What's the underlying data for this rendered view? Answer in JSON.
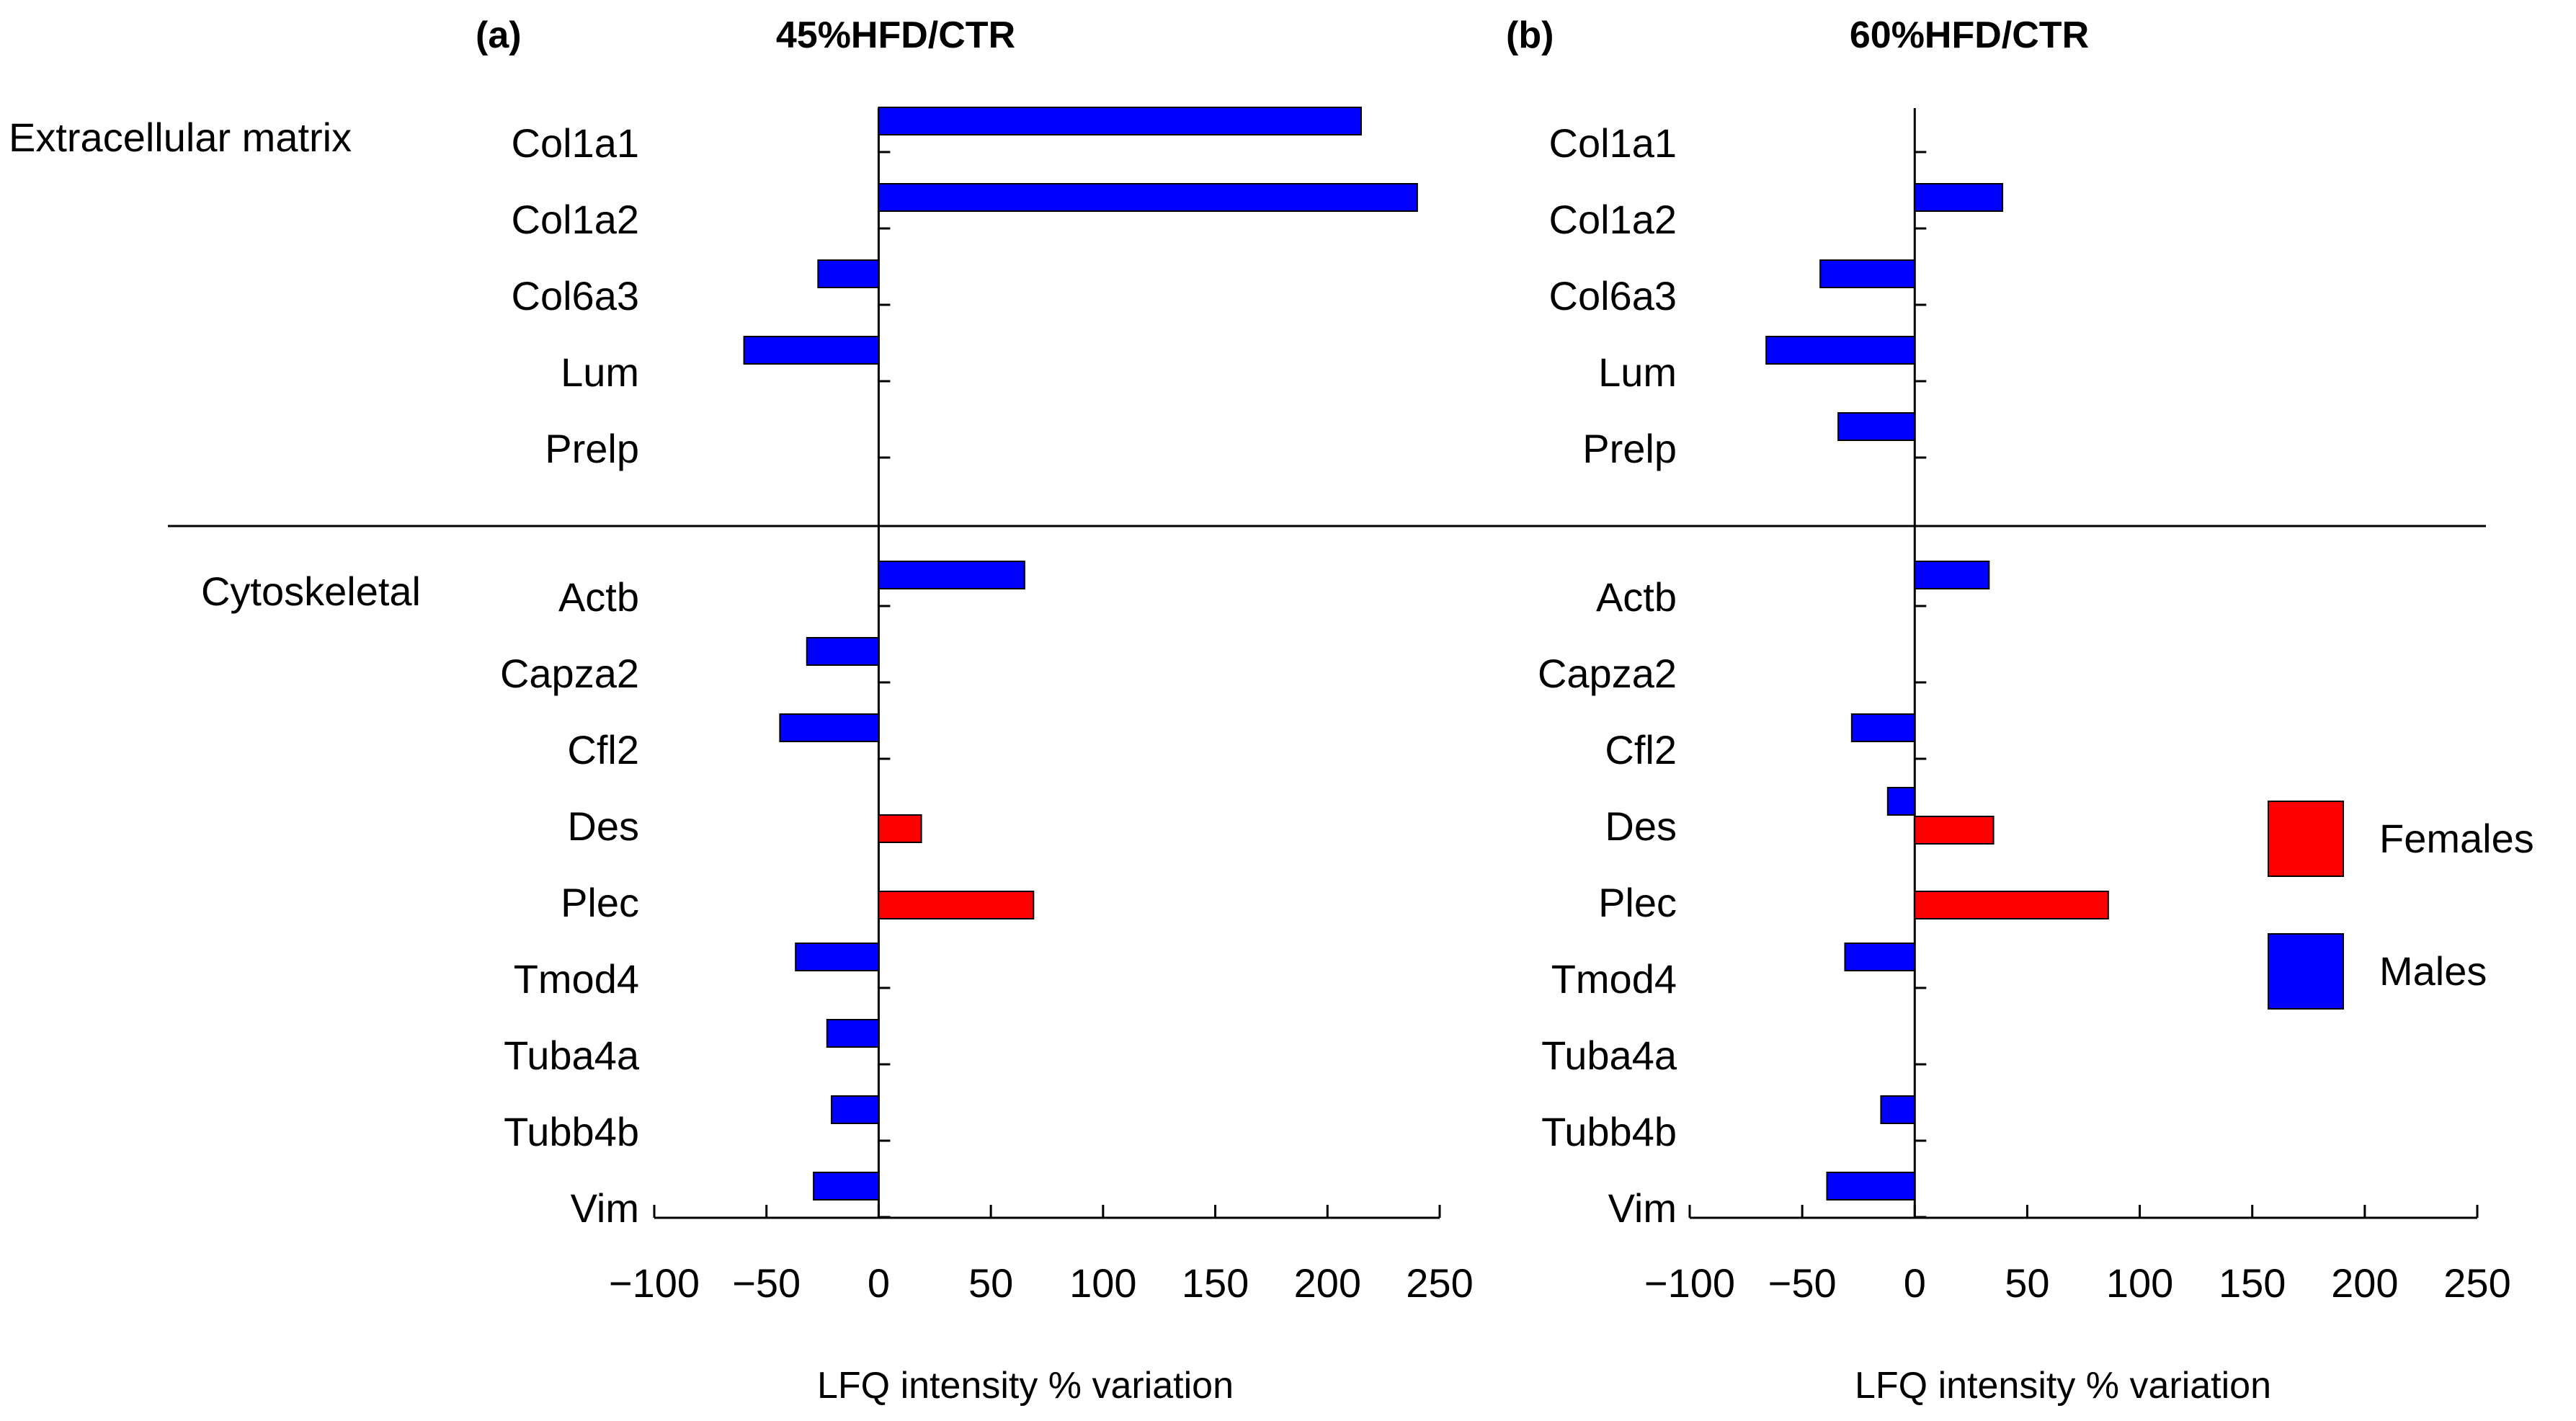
{
  "colors": {
    "females": "#ff0000",
    "males": "#0000ff"
  },
  "legend": [
    {
      "key": "females",
      "label": "Females",
      "color": "#ff0000"
    },
    {
      "key": "males",
      "label": "Males",
      "color": "#0000ff"
    }
  ],
  "groups": [
    {
      "label": "Extracellular matrix",
      "categories": [
        "Col1a1",
        "Col1a2",
        "Col6a3",
        "Lum",
        "Prelp"
      ]
    },
    {
      "label": "Cytoskeletal",
      "categories": [
        "Actb",
        "Capza2",
        "Cfl2",
        "Des",
        "Plec",
        "Tmod4",
        "Tuba4a",
        "Tubb4b",
        "Vim"
      ]
    }
  ],
  "chart_data": [
    {
      "type": "bar",
      "orientation": "horizontal",
      "letter": "(a)",
      "title": "45%HFD/CTR",
      "xlabel": "LFQ intensity % variation",
      "xlim": [
        -100,
        250
      ],
      "xticks": [
        -100,
        -50,
        0,
        50,
        100,
        150,
        200,
        250
      ],
      "xtick_labels": [
        "−100",
        "−50",
        "0",
        "50",
        "100",
        "150",
        "200",
        "250"
      ],
      "categories": [
        "Col1a1",
        "Col1a2",
        "Col6a3",
        "Lum",
        "Prelp",
        "Actb",
        "Capza2",
        "Cfl2",
        "Des",
        "Plec",
        "Tmod4",
        "Tuba4a",
        "Tubb4b",
        "Vim"
      ],
      "series": [
        {
          "name": "Females",
          "values": [
            null,
            null,
            null,
            null,
            null,
            null,
            null,
            null,
            19,
            69,
            null,
            null,
            null,
            null
          ]
        },
        {
          "name": "Males",
          "values": [
            215,
            240,
            -27,
            -60,
            null,
            65,
            -32,
            -44,
            null,
            null,
            -37,
            -23,
            -21,
            -29
          ]
        }
      ]
    },
    {
      "type": "bar",
      "orientation": "horizontal",
      "letter": "(b)",
      "title": "60%HFD/CTR",
      "xlabel": "LFQ intensity % variation",
      "xlim": [
        -100,
        250
      ],
      "xticks": [
        -100,
        -50,
        0,
        50,
        100,
        150,
        200,
        250
      ],
      "xtick_labels": [
        "−100",
        "−50",
        "0",
        "50",
        "100",
        "150",
        "200",
        "250"
      ],
      "categories": [
        "Col1a1",
        "Col1a2",
        "Col6a3",
        "Lum",
        "Prelp",
        "Actb",
        "Capza2",
        "Cfl2",
        "Des",
        "Plec",
        "Tmod4",
        "Tuba4a",
        "Tubb4b",
        "Vim"
      ],
      "series": [
        {
          "name": "Females",
          "values": [
            null,
            null,
            null,
            null,
            null,
            null,
            null,
            null,
            35,
            86,
            null,
            null,
            null,
            null
          ]
        },
        {
          "name": "Males",
          "values": [
            null,
            39,
            -42,
            -66,
            -34,
            33,
            null,
            -28,
            -12,
            null,
            -31,
            null,
            -15,
            -39
          ]
        }
      ]
    }
  ]
}
